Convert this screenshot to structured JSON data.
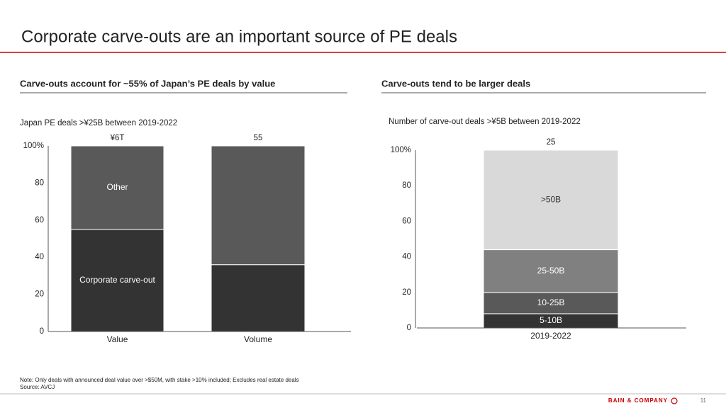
{
  "title": "Corporate carve-outs are an important source of PE deals",
  "chart_data": [
    {
      "type": "stacked_bar",
      "heading": "Carve-outs account for ~55% of Japan’s PE deals by value",
      "subtitle": "Japan PE deals >¥25B between 2019-2022",
      "categories": [
        "Value",
        "Volume"
      ],
      "bar_labels": [
        "¥6T",
        "55"
      ],
      "series": [
        {
          "name": "Corporate carve-out",
          "color": "#333333",
          "values": [
            55,
            36
          ]
        },
        {
          "name": "Other",
          "color": "#595959",
          "values": [
            45,
            64
          ]
        }
      ],
      "ylim": [
        0,
        100
      ],
      "yticks": [
        0,
        20,
        40,
        60,
        80,
        {
          "value": 100,
          "label": "100%"
        }
      ]
    },
    {
      "type": "stacked_bar",
      "heading": "Carve-outs tend to be larger deals",
      "subtitle": "Number of carve-out deals >¥5B between 2019-2022",
      "categories": [
        "2019-2022"
      ],
      "bar_labels": [
        "25"
      ],
      "series": [
        {
          "name": "5-10B",
          "color": "#333333",
          "values": [
            8
          ]
        },
        {
          "name": "10-25B",
          "color": "#595959",
          "values": [
            12
          ]
        },
        {
          "name": "25-50B",
          "color": "#808080",
          "values": [
            24
          ]
        },
        {
          "name": ">50B",
          "color": "#d9d9d9",
          "values": [
            56
          ]
        }
      ],
      "ylim": [
        0,
        100
      ],
      "yticks": [
        0,
        20,
        40,
        60,
        80,
        {
          "value": 100,
          "label": "100%"
        }
      ]
    }
  ],
  "note": "Note: Only deals with announced deal value over >$50M, with stake >10% included; Excludes real estate deals",
  "source": "Source: AVCJ",
  "brand": "BAIN & COMPANY",
  "page_number": "11"
}
